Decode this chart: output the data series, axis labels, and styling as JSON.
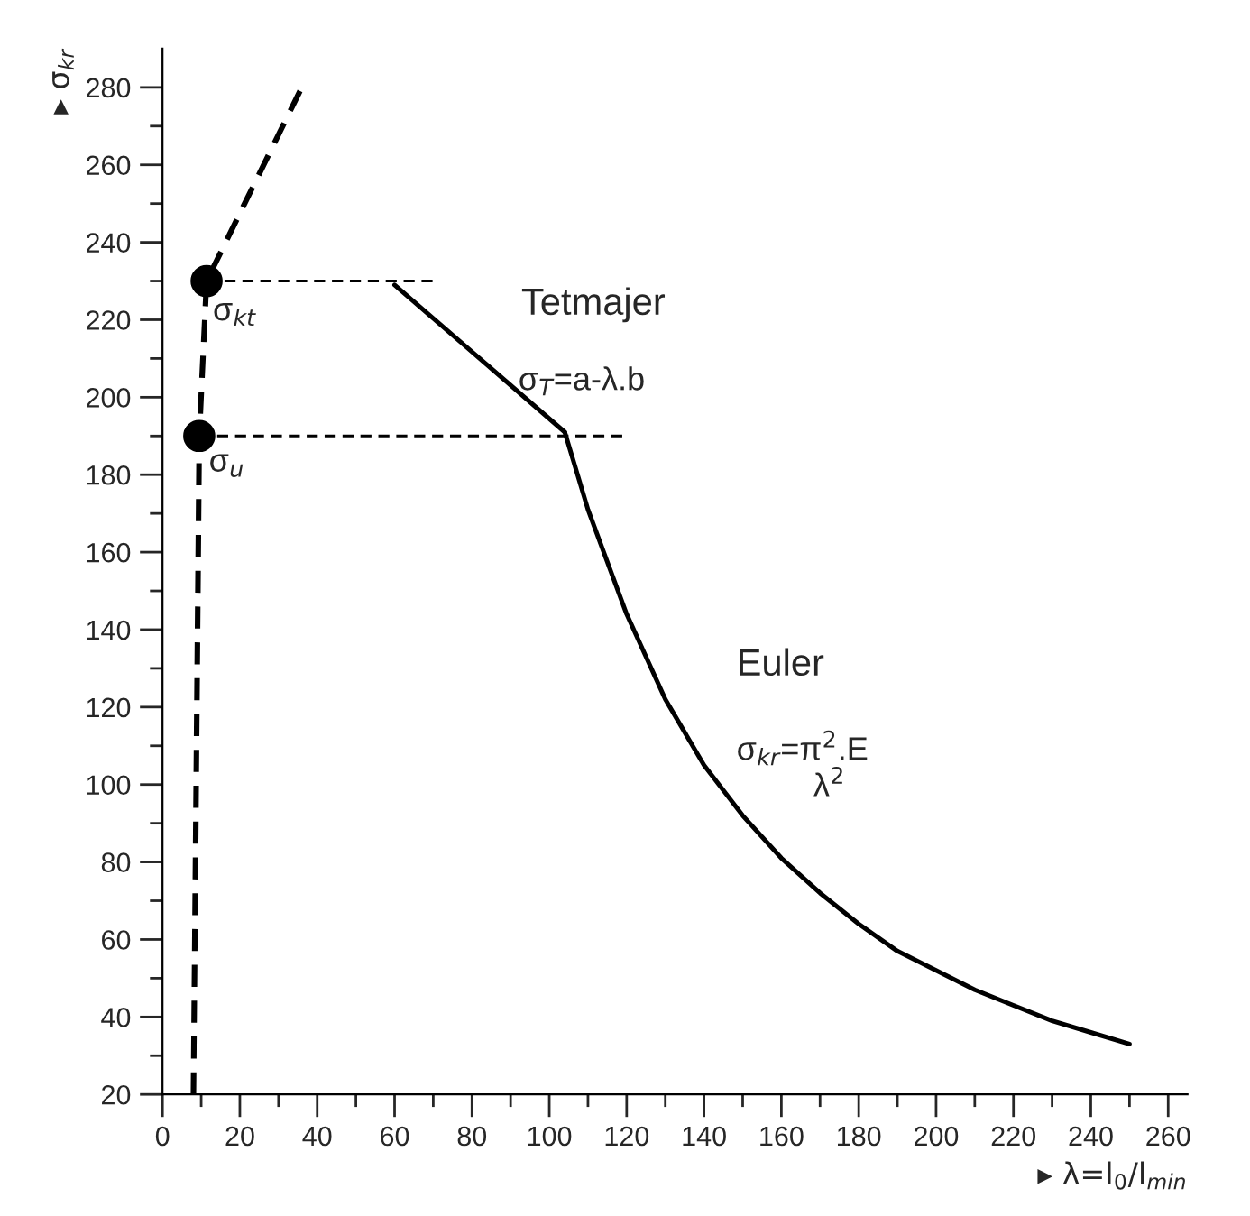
{
  "chart_data": {
    "type": "line",
    "xlabel": "▸ λ=l$_{0}$/l$_{min}$",
    "ylabel": "▸ σ$_{kr}$",
    "series": [
      {
        "type": "line",
        "color": "#000000",
        "line_style": "dashed",
        "x": [
          8,
          9.5,
          11.4,
          36
        ],
        "values": [
          20,
          190,
          230,
          280
        ]
      },
      {
        "type": "line",
        "color": "#000000",
        "line_style": "dashed",
        "x": [
          11.4,
          70
        ],
        "values": [
          230,
          230
        ]
      },
      {
        "type": "line",
        "color": "#000000",
        "line_style": "dashed",
        "x": [
          9.5,
          120
        ],
        "values": [
          190,
          190
        ]
      },
      {
        "type": "line",
        "color": "#000000",
        "line_style": "solid",
        "x": [
          60,
          104
        ],
        "values": [
          229,
          191
        ]
      },
      {
        "type": "line",
        "color": "#000000",
        "line_style": "solid",
        "x": [
          104,
          110,
          120,
          130,
          140,
          150,
          160,
          170,
          180,
          190,
          200,
          210,
          220,
          230,
          240,
          250
        ],
        "values": [
          191,
          171,
          144,
          122,
          105,
          92,
          81,
          72,
          64,
          57,
          52,
          47,
          43,
          39,
          36,
          33
        ]
      },
      {
        "type": "scatter",
        "color": "#000000",
        "marker": "circle",
        "x": [
          11.4,
          9.5
        ],
        "values": [
          230,
          190
        ]
      }
    ],
    "annotations": [
      {
        "text": "σ$_{kt}$",
        "x": 13,
        "y": 222
      },
      {
        "text": "σ$_{u}$",
        "x": 12,
        "y": 183
      },
      "Tetmajer",
      {
        "text": "σ$_{T}$=a-λ.b",
        "x": 92,
        "y": 204
      },
      "Euler",
      "σ$_{kr}$=π$^{2}$.E",
      "λ$^{2}$"
    ],
    "xlim": [
      0,
      265
    ],
    "ylim": [
      20,
      290
    ],
    "xticks": [
      0,
      20,
      40,
      60,
      80,
      100,
      120,
      140,
      160,
      180,
      200,
      220,
      240,
      260
    ],
    "yticks": [
      20,
      40,
      60,
      80,
      100,
      120,
      140,
      160,
      180,
      200,
      220,
      240,
      260,
      280
    ],
    "grid": false,
    "legend": false
  }
}
